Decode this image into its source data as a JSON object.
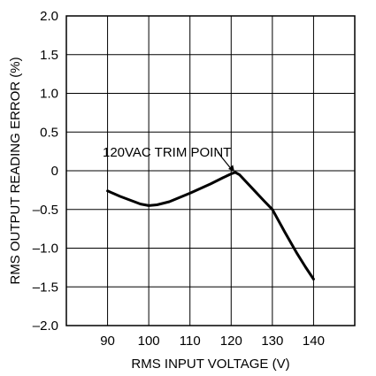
{
  "chart_data": {
    "type": "line",
    "title": "",
    "xlabel": "RMS INPUT VOLTAGE (V)",
    "ylabel": "RMS OUTPUT READING ERROR (%)",
    "xlim": [
      80,
      150
    ],
    "ylim": [
      -2.0,
      2.0
    ],
    "x_ticks": [
      90,
      100,
      110,
      120,
      130,
      140
    ],
    "x_tick_labels": [
      "90",
      "100",
      "110",
      "120",
      "130",
      "140"
    ],
    "y_ticks": [
      2.0,
      1.5,
      1.0,
      0.5,
      0,
      -0.5,
      -1.0,
      -1.5,
      -2.0
    ],
    "y_tick_labels": [
      "2.0",
      "1.5",
      "1.0",
      "0.5",
      "0",
      "–0.5",
      "–1.0",
      "–1.5",
      "–2.0"
    ],
    "grid": true,
    "series": [
      {
        "x": [
          90,
          93,
          96,
          98,
          100,
          102,
          105,
          110,
          115,
          118,
          120,
          121,
          122,
          125,
          128,
          130,
          133,
          136,
          138,
          140
        ],
        "y": [
          -0.26,
          -0.33,
          -0.39,
          -0.43,
          -0.45,
          -0.44,
          -0.4,
          -0.29,
          -0.17,
          -0.09,
          -0.04,
          -0.02,
          -0.05,
          -0.22,
          -0.39,
          -0.5,
          -0.79,
          -1.07,
          -1.24,
          -1.4
        ]
      }
    ],
    "annotations": [
      {
        "text": "120VAC TRIM POINT",
        "points_to": [
          121,
          -0.02
        ]
      }
    ],
    "colors": {
      "line": "#000000",
      "grid": "#000000",
      "background": "#ffffff"
    }
  }
}
